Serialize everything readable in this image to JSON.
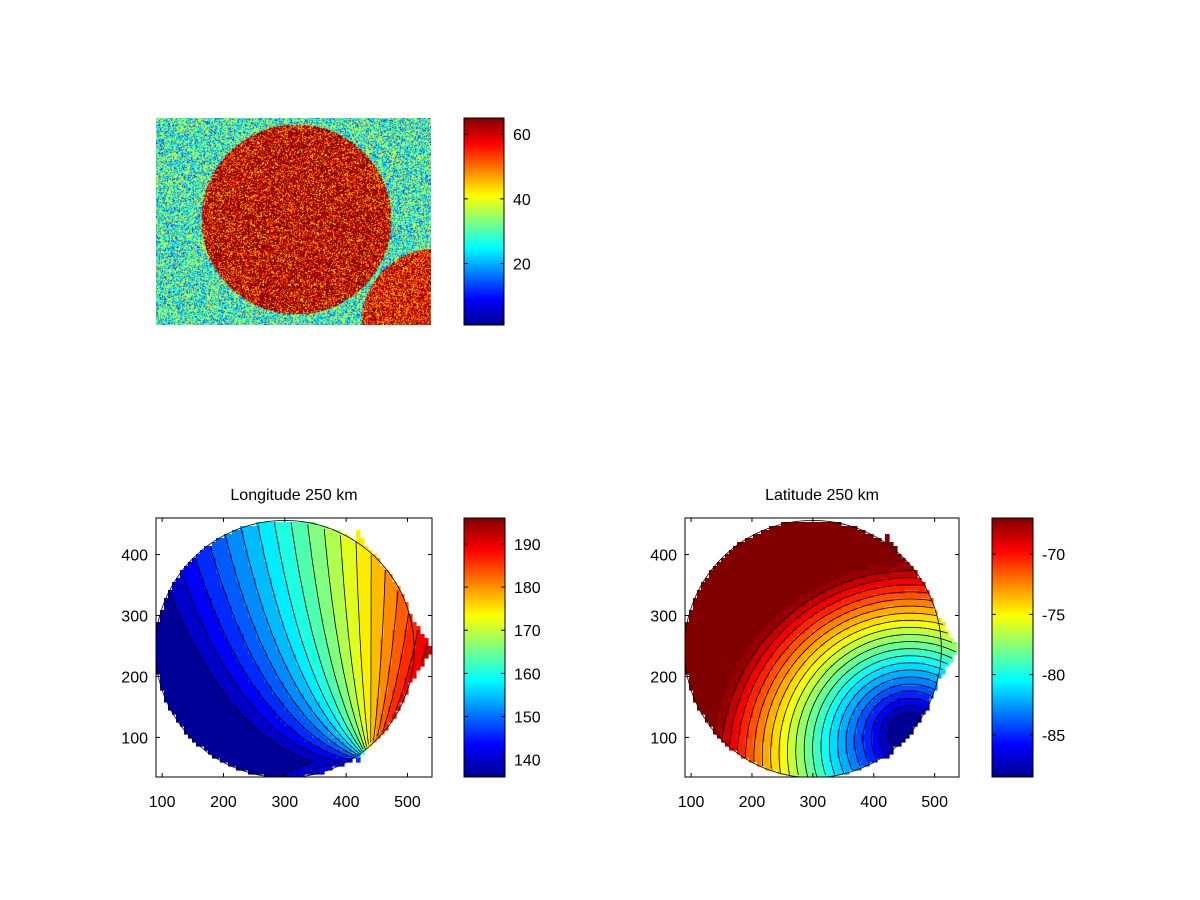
{
  "figure": {
    "background": "#ffffff",
    "colormap": "jet"
  },
  "chart_data": [
    {
      "type": "heatmap",
      "title": "",
      "xlabel": "",
      "ylabel": "",
      "axes_visible": false,
      "description_values": {
        "disk_mean": 58,
        "background_mean": 28,
        "noise_amplitude": 16
      },
      "colorbar": {
        "clim": [
          1,
          65
        ],
        "ticks": [
          20,
          40,
          60
        ],
        "tick_labels": [
          "20",
          "40",
          "60"
        ]
      }
    },
    {
      "type": "heatmap",
      "subtype": "filled-contour",
      "title": "Longitude 250 km",
      "xlabel": "",
      "ylabel": "",
      "xlim": [
        90,
        540
      ],
      "ylim": [
        35,
        460
      ],
      "xticks": [
        100,
        200,
        300,
        400,
        500
      ],
      "xtick_labels": [
        "100",
        "200",
        "300",
        "400",
        "500"
      ],
      "yticks": [
        100,
        200,
        300,
        400
      ],
      "ytick_labels": [
        "100",
        "200",
        "300",
        "400"
      ],
      "contour_levels": 21,
      "colorbar": {
        "clim": [
          136,
          196
        ],
        "ticks": [
          140,
          150,
          160,
          170,
          180,
          190
        ],
        "tick_labels": [
          "140",
          "150",
          "160",
          "170",
          "180",
          "190"
        ]
      }
    },
    {
      "type": "heatmap",
      "subtype": "filled-contour",
      "title": "Latitude 250 km",
      "xlabel": "",
      "ylabel": "",
      "xlim": [
        90,
        540
      ],
      "ylim": [
        35,
        460
      ],
      "xticks": [
        100,
        200,
        300,
        400,
        500
      ],
      "xtick_labels": [
        "100",
        "200",
        "300",
        "400",
        "500"
      ],
      "yticks": [
        100,
        200,
        300,
        400
      ],
      "ytick_labels": [
        "100",
        "200",
        "300",
        "400"
      ],
      "contour_levels": 22,
      "colorbar": {
        "clim": [
          -88.5,
          -67
        ],
        "ticks": [
          -85,
          -80,
          -75,
          -70
        ],
        "tick_labels": [
          "-85",
          "-80",
          "-75",
          "-70"
        ]
      }
    }
  ]
}
